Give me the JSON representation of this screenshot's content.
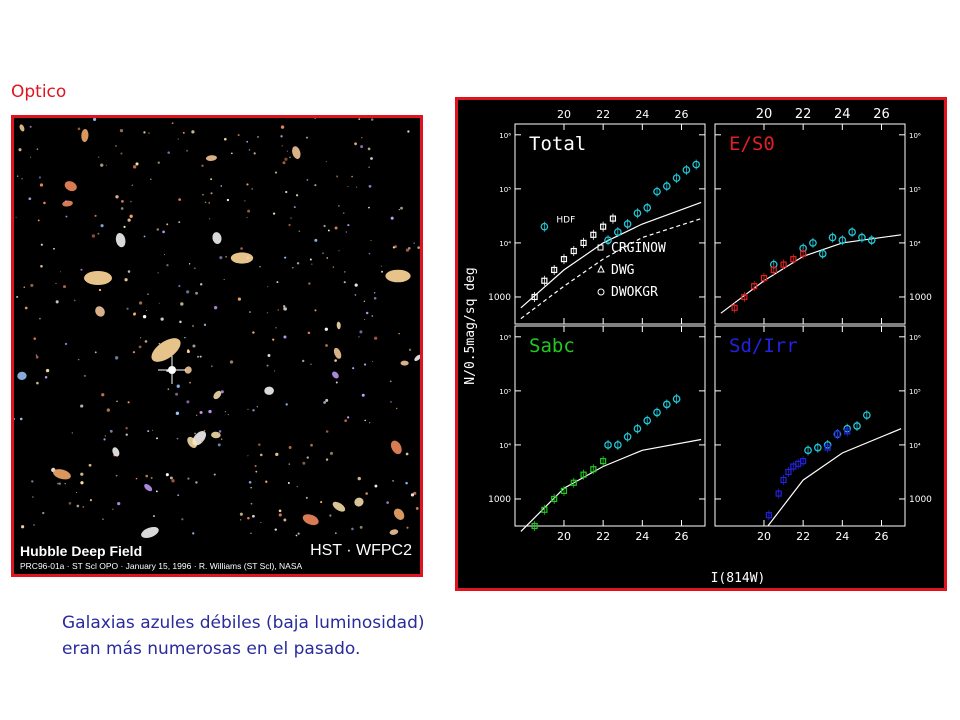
{
  "slide": {
    "title": "Optico",
    "caption_line1": "Galaxias azules débiles  (baja luminosidad)",
    "caption_line2": "eran más numerosas en el pasado."
  },
  "hdf_image": {
    "name": "Hubble Deep Field",
    "instrument": "HST · WFPC2",
    "credit": "PRC96-01a · ST Scl OPO · January 15, 1996 · R. Williams (ST Scl), NASA"
  },
  "colors": {
    "accent_red": "#e0141e",
    "caption_blue": "#2a2a9c",
    "total_points": "#22c8d8",
    "eso_points": "#e02020",
    "sabc_points": "#22c822",
    "sdirr_points": "#2222e0"
  },
  "chart_data": {
    "type": "scatter",
    "xlabel": "I(814W)",
    "ylabel": "N/0.5mag/sq deg",
    "x_ticks": [
      "20",
      "22",
      "24",
      "26"
    ],
    "y_ticks": [
      "1000",
      "10⁴",
      "10⁵",
      "10⁶"
    ],
    "x_range": [
      17.5,
      27.2
    ],
    "y_range_log10": [
      2.5,
      6.2
    ],
    "panels": [
      {
        "label": "Total",
        "label_color": "#ffffff",
        "legend": [
          "HDF",
          "CRGINOW",
          "DWG",
          "DWOKGR"
        ],
        "series": [
          {
            "name": "HDF",
            "marker": "circle",
            "color": "#22c8d8",
            "x": [
              19.0,
              22.25,
              22.75,
              23.25,
              23.75,
              24.25,
              24.75,
              25.25,
              25.75,
              26.25,
              26.75
            ],
            "y": [
              4.3,
              4.05,
              4.2,
              4.35,
              4.55,
              4.65,
              4.95,
              5.05,
              5.2,
              5.35,
              5.45
            ]
          },
          {
            "name": "CRGINOW",
            "marker": "square",
            "color": "#ffffff",
            "x": [
              18.5,
              19.0,
              19.5,
              20.0,
              20.5,
              21.0,
              21.5,
              22.0,
              22.5
            ],
            "y": [
              3.0,
              3.3,
              3.5,
              3.7,
              3.85,
              4.0,
              4.15,
              4.3,
              4.45
            ]
          }
        ],
        "model_curves": [
          {
            "style": "solid",
            "x": [
              17.8,
              20,
              22,
              24,
              27
            ],
            "y": [
              2.8,
              3.5,
              4.0,
              4.35,
              4.75
            ]
          },
          {
            "style": "dashed",
            "x": [
              17.8,
              20,
              22,
              24,
              27
            ],
            "y": [
              2.6,
              3.2,
              3.7,
              4.1,
              4.45
            ]
          }
        ]
      },
      {
        "label": "E/S0",
        "label_color": "#e02020",
        "series": [
          {
            "name": "",
            "marker": "circle",
            "color": "#22c8d8",
            "x": [
              20.5,
              22.0,
              22.5,
              23.0,
              23.5,
              24.0,
              24.5,
              25.0,
              25.5
            ],
            "y": [
              3.6,
              3.9,
              4.0,
              3.8,
              4.1,
              4.05,
              4.2,
              4.1,
              4.05
            ]
          },
          {
            "name": "",
            "marker": "square",
            "color": "#e02020",
            "x": [
              18.5,
              19.0,
              19.5,
              20.0,
              20.5,
              21.0,
              21.5,
              22.0
            ],
            "y": [
              2.8,
              3.0,
              3.2,
              3.35,
              3.5,
              3.6,
              3.7,
              3.8
            ]
          }
        ],
        "model_curves": [
          {
            "style": "solid",
            "x": [
              17.8,
              20,
              22,
              24,
              27
            ],
            "y": [
              2.7,
              3.3,
              3.75,
              4.0,
              4.15
            ]
          }
        ]
      },
      {
        "label": "Sabc",
        "label_color": "#22c822",
        "series": [
          {
            "name": "",
            "marker": "circle",
            "color": "#22c8d8",
            "x": [
              22.25,
              22.75,
              23.25,
              23.75,
              24.25,
              24.75,
              25.25,
              25.75
            ],
            "y": [
              4.0,
              4.0,
              4.15,
              4.3,
              4.45,
              4.6,
              4.75,
              4.85
            ]
          },
          {
            "name": "",
            "marker": "square",
            "color": "#22c822",
            "x": [
              18.5,
              19.0,
              19.5,
              20.0,
              20.5,
              21.0,
              21.5,
              22.0
            ],
            "y": [
              2.5,
              2.8,
              3.0,
              3.15,
              3.3,
              3.45,
              3.55,
              3.7
            ]
          }
        ],
        "model_curves": [
          {
            "style": "solid",
            "x": [
              17.8,
              20,
              22,
              24,
              27
            ],
            "y": [
              2.4,
              3.2,
              3.6,
              3.9,
              4.1
            ]
          }
        ]
      },
      {
        "label": "Sd/Irr",
        "label_color": "#2222e0",
        "series": [
          {
            "name": "",
            "marker": "circle",
            "color": "#22c8d8",
            "x": [
              22.25,
              22.75,
              23.25,
              23.75,
              24.25,
              24.75,
              25.25
            ],
            "y": [
              3.9,
              3.95,
              4.0,
              4.2,
              4.3,
              4.35,
              4.55
            ]
          },
          {
            "name": "",
            "marker": "square",
            "color": "#2222e0",
            "x": [
              20.25,
              20.75,
              21.0,
              21.25,
              21.5,
              21.75,
              22.0,
              23.25,
              23.75,
              24.25
            ],
            "y": [
              2.7,
              3.1,
              3.35,
              3.5,
              3.6,
              3.65,
              3.7,
              3.95,
              4.2,
              4.25
            ]
          }
        ],
        "model_curves": [
          {
            "style": "solid",
            "x": [
              20.2,
              22,
              24,
              27
            ],
            "y": [
              2.5,
              3.35,
              3.85,
              4.3
            ]
          }
        ]
      }
    ]
  }
}
